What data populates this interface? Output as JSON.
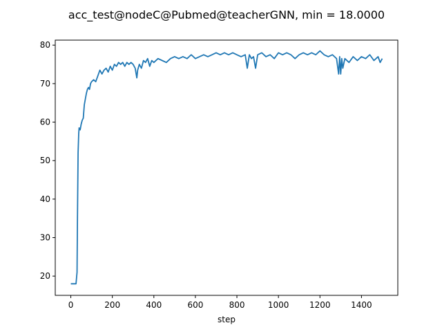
{
  "chart_data": {
    "type": "line",
    "title": "acc_test@nodeC@Pubmed@teacherGNN, min = 18.0000",
    "xlabel": "step",
    "ylabel": "",
    "xlim": [
      -75,
      1575
    ],
    "ylim": [
      15.0,
      81.3
    ],
    "xticks": [
      0,
      200,
      400,
      600,
      800,
      1000,
      1200,
      1400
    ],
    "yticks": [
      20,
      30,
      40,
      50,
      60,
      70,
      80
    ],
    "grid": false,
    "legend": "none",
    "series": [
      {
        "color": "#1f77b4",
        "x": [
          0,
          10,
          20,
          25,
          30,
          32,
          35,
          38,
          40,
          45,
          50,
          55,
          60,
          65,
          70,
          75,
          80,
          85,
          90,
          95,
          100,
          110,
          120,
          130,
          140,
          150,
          160,
          170,
          180,
          190,
          200,
          210,
          220,
          230,
          240,
          250,
          260,
          270,
          280,
          290,
          300,
          310,
          318,
          322,
          330,
          340,
          350,
          360,
          370,
          380,
          390,
          400,
          420,
          440,
          460,
          480,
          500,
          520,
          540,
          560,
          580,
          600,
          620,
          640,
          660,
          680,
          700,
          720,
          740,
          760,
          780,
          800,
          820,
          840,
          850,
          860,
          870,
          880,
          890,
          900,
          920,
          940,
          960,
          980,
          1000,
          1020,
          1040,
          1060,
          1080,
          1100,
          1120,
          1140,
          1160,
          1180,
          1200,
          1220,
          1240,
          1260,
          1280,
          1290,
          1295,
          1300,
          1305,
          1310,
          1320,
          1340,
          1360,
          1380,
          1400,
          1420,
          1440,
          1460,
          1480,
          1490,
          1500
        ],
        "y": [
          18.0,
          18.0,
          18.0,
          18.0,
          21.0,
          35.0,
          52.0,
          57.0,
          58.5,
          58.0,
          59.5,
          60.5,
          61.0,
          64.5,
          66.0,
          67.5,
          68.5,
          69.0,
          68.5,
          70.0,
          70.5,
          71.0,
          70.5,
          72.0,
          73.5,
          72.5,
          73.5,
          74.0,
          73.0,
          74.5,
          73.5,
          75.0,
          74.5,
          75.5,
          75.0,
          75.5,
          74.5,
          75.5,
          75.0,
          75.5,
          75.0,
          74.0,
          71.5,
          73.5,
          75.0,
          74.0,
          76.0,
          75.5,
          76.5,
          74.5,
          76.0,
          75.5,
          76.5,
          76.0,
          75.5,
          76.5,
          77.0,
          76.5,
          77.0,
          76.5,
          77.5,
          76.5,
          77.0,
          77.5,
          77.0,
          77.5,
          78.0,
          77.5,
          78.0,
          77.5,
          78.0,
          77.5,
          77.0,
          77.5,
          74.0,
          77.5,
          76.5,
          77.0,
          74.0,
          77.5,
          78.0,
          77.0,
          77.5,
          76.5,
          78.0,
          77.5,
          78.0,
          77.5,
          76.5,
          77.5,
          78.0,
          77.5,
          78.0,
          77.5,
          78.5,
          77.5,
          77.0,
          77.5,
          76.5,
          72.5,
          77.0,
          72.5,
          76.5,
          74.0,
          76.5,
          75.5,
          77.0,
          76.0,
          77.0,
          76.5,
          77.5,
          76.0,
          77.0,
          75.5,
          76.5
        ]
      }
    ]
  }
}
